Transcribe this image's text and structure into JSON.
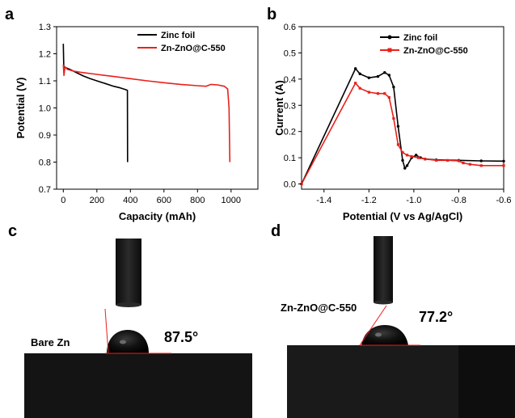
{
  "panels": {
    "a": "a",
    "b": "b",
    "c": "c",
    "d": "d"
  },
  "colors": {
    "zinc_foil": "#000000",
    "coated": "#e8211b",
    "substrate": "#141414",
    "needle": "#1c1c1c"
  },
  "chart_data": [
    {
      "panel": "a",
      "type": "line",
      "title": "",
      "xlabel": "Capacity (mAh)",
      "ylabel": "Potential (V)",
      "xlim": [
        -40,
        1160
      ],
      "ylim": [
        0.7,
        1.3
      ],
      "xticks": [
        0,
        200,
        400,
        600,
        800,
        1000
      ],
      "yticks": [
        0.7,
        0.8,
        0.9,
        1.0,
        1.1,
        1.2,
        1.3
      ],
      "ytick_labels": [
        "0.7",
        "0.8",
        "0.9",
        "1.0",
        "1.1",
        "1.2",
        "1.3"
      ],
      "legend_position": "top-right",
      "series": [
        {
          "name": "Zinc foil",
          "color": "#000000",
          "points": [
            [
              0,
              1.237
            ],
            [
              3,
              1.15
            ],
            [
              10,
              1.15
            ],
            [
              40,
              1.142
            ],
            [
              80,
              1.13
            ],
            [
              120,
              1.118
            ],
            [
              160,
              1.108
            ],
            [
              200,
              1.1
            ],
            [
              250,
              1.09
            ],
            [
              300,
              1.08
            ],
            [
              340,
              1.074
            ],
            [
              370,
              1.068
            ],
            [
              382,
              1.065
            ],
            [
              383,
              0.8
            ]
          ]
        },
        {
          "name": "Zn-ZnO@C-550",
          "color": "#e8211b",
          "points": [
            [
              0,
              1.16
            ],
            [
              4,
              1.12
            ],
            [
              10,
              1.152
            ],
            [
              25,
              1.142
            ],
            [
              60,
              1.136
            ],
            [
              100,
              1.132
            ],
            [
              200,
              1.124
            ],
            [
              300,
              1.116
            ],
            [
              400,
              1.108
            ],
            [
              500,
              1.1
            ],
            [
              600,
              1.093
            ],
            [
              700,
              1.087
            ],
            [
              800,
              1.082
            ],
            [
              850,
              1.08
            ],
            [
              880,
              1.087
            ],
            [
              920,
              1.085
            ],
            [
              960,
              1.08
            ],
            [
              980,
              1.07
            ],
            [
              988,
              1.0
            ],
            [
              993,
              0.8
            ]
          ]
        }
      ]
    },
    {
      "panel": "b",
      "type": "line",
      "title": "",
      "xlabel": "Potential (V vs Ag/AgCl)",
      "ylabel": "Current (A)",
      "xlim": [
        -1.5,
        -0.6
      ],
      "ylim": [
        -0.02,
        0.6
      ],
      "xticks": [
        -1.4,
        -1.2,
        -1.0,
        -0.8,
        -0.6
      ],
      "xtick_labels": [
        "-1.4",
        "-1.2",
        "-1.0",
        "-0.8",
        "-0.6"
      ],
      "yticks": [
        0.0,
        0.1,
        0.2,
        0.3,
        0.4,
        0.5,
        0.6
      ],
      "ytick_labels": [
        "0.0",
        "0.1",
        "0.2",
        "0.3",
        "0.4",
        "0.5",
        "0.6"
      ],
      "legend_position": "top-right",
      "series": [
        {
          "name": "Zinc foil",
          "color": "#000000",
          "points": [
            [
              -1.5,
              0.0
            ],
            [
              -1.26,
              0.44
            ],
            [
              -1.24,
              0.42
            ],
            [
              -1.2,
              0.405
            ],
            [
              -1.16,
              0.41
            ],
            [
              -1.13,
              0.425
            ],
            [
              -1.11,
              0.415
            ],
            [
              -1.09,
              0.37
            ],
            [
              -1.07,
              0.22
            ],
            [
              -1.05,
              0.09
            ],
            [
              -1.04,
              0.06
            ],
            [
              -1.03,
              0.07
            ],
            [
              -1.01,
              0.1
            ],
            [
              -0.99,
              0.11
            ],
            [
              -0.97,
              0.1
            ],
            [
              -0.95,
              0.095
            ],
            [
              -0.9,
              0.092
            ],
            [
              -0.8,
              0.09
            ],
            [
              -0.7,
              0.088
            ],
            [
              -0.6,
              0.087
            ]
          ]
        },
        {
          "name": "Zn-ZnO@C-550",
          "color": "#e8211b",
          "points": [
            [
              -1.5,
              0.0
            ],
            [
              -1.26,
              0.385
            ],
            [
              -1.24,
              0.365
            ],
            [
              -1.2,
              0.35
            ],
            [
              -1.16,
              0.345
            ],
            [
              -1.13,
              0.345
            ],
            [
              -1.11,
              0.33
            ],
            [
              -1.09,
              0.25
            ],
            [
              -1.07,
              0.15
            ],
            [
              -1.05,
              0.12
            ],
            [
              -1.03,
              0.11
            ],
            [
              -1.01,
              0.105
            ],
            [
              -0.98,
              0.1
            ],
            [
              -0.95,
              0.095
            ],
            [
              -0.9,
              0.09
            ],
            [
              -0.85,
              0.09
            ],
            [
              -0.8,
              0.088
            ],
            [
              -0.78,
              0.08
            ],
            [
              -0.75,
              0.075
            ],
            [
              -0.7,
              0.07
            ],
            [
              -0.6,
              0.07
            ]
          ]
        }
      ]
    }
  ],
  "photos": [
    {
      "panel": "c",
      "label": "Bare Zn",
      "angle": "87.5°"
    },
    {
      "panel": "d",
      "label": "Zn-ZnO@C-550",
      "angle": "77.2°"
    }
  ]
}
